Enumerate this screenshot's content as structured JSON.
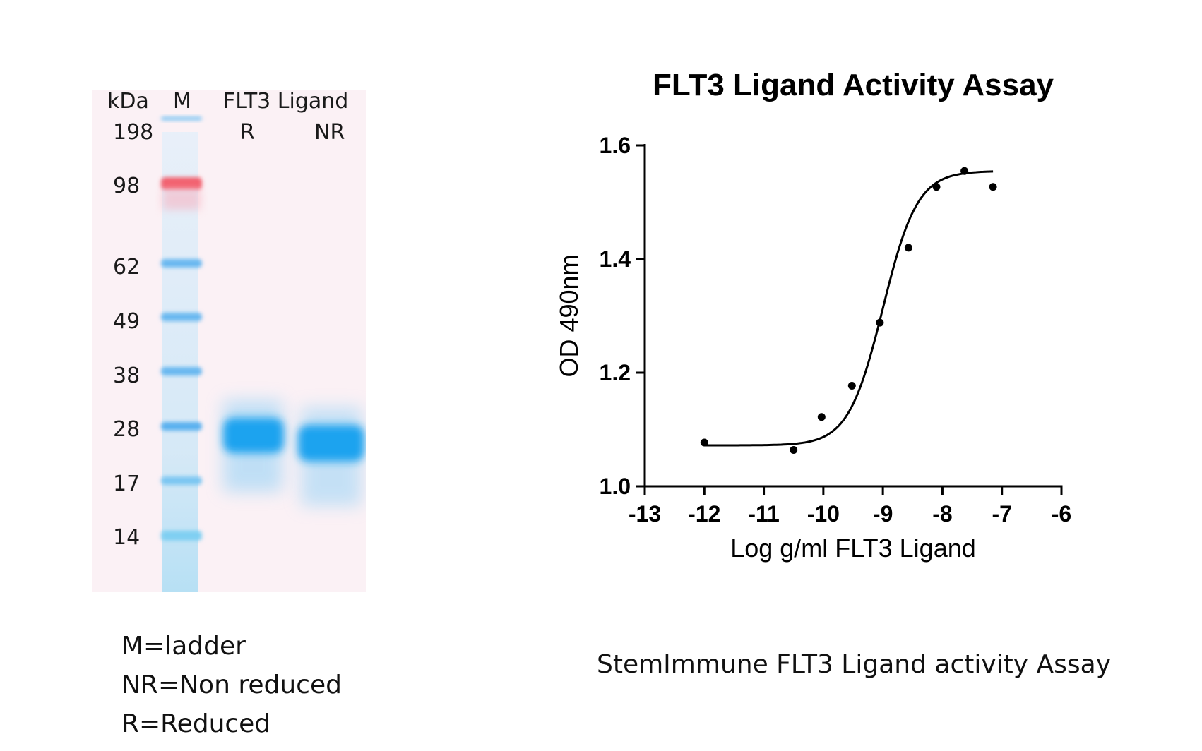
{
  "gel": {
    "header": {
      "unit": "kDa",
      "ladder": "M",
      "sample": "FLT3 Ligand"
    },
    "lane_labels": [
      "R",
      "NR"
    ],
    "markers": [
      "198",
      "98",
      "62",
      "49",
      "38",
      "28",
      "17",
      "14"
    ],
    "colors": {
      "background": "#fbf1f5",
      "band": "#1aa3ef",
      "marker_red": "#f2606e",
      "marker_blue": "#69b8f0"
    }
  },
  "legend": [
    "M=ladder",
    "NR=Non reduced",
    "R=Reduced"
  ],
  "caption": "StemImmune FLT3 Ligand  activity Assay",
  "chart_data": {
    "type": "scatter",
    "title": "FLT3 Ligand Activity Assay",
    "xlabel": "Log g/ml FLT3 Ligand",
    "ylabel": "OD 490nm",
    "xlim": [
      -13,
      -6
    ],
    "ylim": [
      1.0,
      1.6
    ],
    "xticks": [
      -13,
      -12,
      -11,
      -10,
      -9,
      -8,
      -7,
      -6
    ],
    "xtick_labels": [
      "-13",
      "-12",
      "-11",
      "-10",
      "-9",
      "-8",
      "-7",
      "-6"
    ],
    "yticks": [
      1.0,
      1.2,
      1.4,
      1.6
    ],
    "ytick_labels": [
      "1.0",
      "1.2",
      "1.4",
      "1.6"
    ],
    "points": [
      {
        "x": -12.0,
        "y": 1.077
      },
      {
        "x": -10.5,
        "y": 1.064
      },
      {
        "x": -10.03,
        "y": 1.122
      },
      {
        "x": -9.52,
        "y": 1.177
      },
      {
        "x": -9.05,
        "y": 1.288
      },
      {
        "x": -8.57,
        "y": 1.42
      },
      {
        "x": -8.1,
        "y": 1.527
      },
      {
        "x": -7.63,
        "y": 1.555
      },
      {
        "x": -7.15,
        "y": 1.527
      }
    ],
    "fit": {
      "model": "4PL",
      "bottom": 1.072,
      "top": 1.555,
      "logEC50": -9.0,
      "hill": 1.5,
      "x_range": [
        -12.0,
        -7.15
      ]
    }
  }
}
